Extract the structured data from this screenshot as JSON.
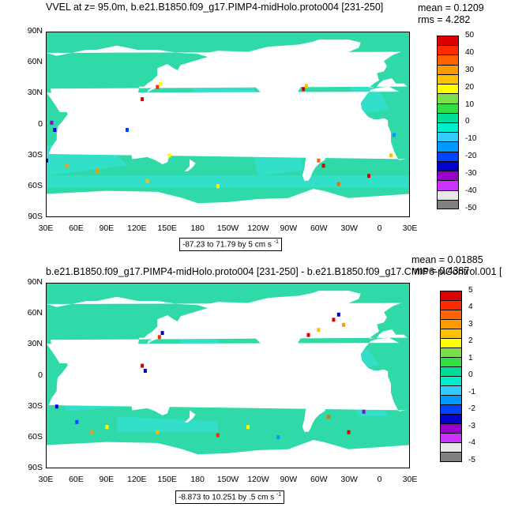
{
  "panel1": {
    "title": "VVEL at z=  95.0m, b.e21.B1850.f09_g17.PIMP4-midHolo.proto004 [231-250]",
    "mean": "mean = 0.1209",
    "rms": "rms = 4.282",
    "range": "-87.23 to 71.79 by 5 cm s",
    "range_exp": "-1",
    "colorbar": [
      "50",
      "40",
      "30",
      "20",
      "10",
      "0",
      "-10",
      "-20",
      "-30",
      "-40",
      "-50"
    ]
  },
  "panel2": {
    "title": "b.e21.B1850.f09_g17.PIMP4-midHolo.proto004 [231-250] - b.e21.B1850.f09_g17.CMIP6-piControl.001 [",
    "mean": "mean = 0.01885",
    "rms": "rms = 0.4387",
    "range": "-8.873 to 10.251 by .5 cm s",
    "range_exp": "-1",
    "colorbar": [
      "5",
      "4",
      "3",
      "2",
      "1",
      "0",
      "-1",
      "-2",
      "-3",
      "-4",
      "-5"
    ]
  },
  "axes": {
    "lat_ticks": [
      "90N",
      "60N",
      "30N",
      "0",
      "30S",
      "60S",
      "90S"
    ],
    "lon_ticks": [
      "30E",
      "60E",
      "90E",
      "120E",
      "150E",
      "180",
      "150W",
      "120W",
      "90W",
      "60W",
      "30W",
      "0",
      "30E"
    ]
  },
  "colors": {
    "colorbar_scale": [
      "#dd0000",
      "#ff2a00",
      "#ff6200",
      "#ff9900",
      "#ffc000",
      "#ffff00",
      "#7ae04a",
      "#33dd44",
      "#00dd99",
      "#00eecc",
      "#33ccff",
      "#0099ff",
      "#0044ff",
      "#0000cc",
      "#9900cc",
      "#cc33ff",
      "#e8e8e8",
      "#808080"
    ],
    "ocean_main": "#2fd9a8",
    "ocean_alt": "#33e0cc",
    "land": "#ffffff"
  }
}
